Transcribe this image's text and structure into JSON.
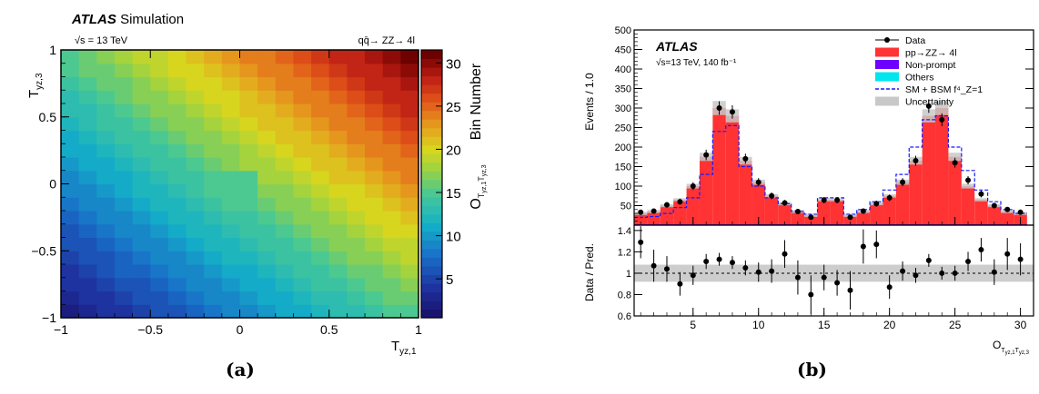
{
  "panels": {
    "a": {
      "caption": "(a)"
    },
    "b": {
      "caption": "(b)"
    }
  },
  "chart_data": [
    {
      "type": "heatmap",
      "panel": "(a)",
      "title": "ATLAS Simulation",
      "title_bold": "ATLAS",
      "title_rest": "Simulation",
      "energy_label": "√s = 13 TeV",
      "process_label": "qq̄→ ZZ→ 4l",
      "xlabel": "T_yz,1",
      "ylabel": "T_yz,3",
      "xlim": [
        -1,
        1
      ],
      "ylim": [
        -1,
        1
      ],
      "x_ticks": [
        "−1",
        "−0.5",
        "0",
        "0.5",
        "1"
      ],
      "y_ticks": [
        "−1",
        "−0.5",
        "0",
        "0.5",
        "1"
      ],
      "colorbar_label": "Bin Number",
      "colorbar_sublabel": "O_T_yz,1 T_yz,3",
      "colorbar_range": [
        1,
        31
      ],
      "colorbar_ticks": [
        "5",
        "10",
        "15",
        "20",
        "25",
        "30"
      ],
      "grid": "20x20 bins, bin number increasing with T_yz,1 + T_yz,3 (ordered by product sign); central 2x2 bins = 15"
    },
    {
      "type": "bar",
      "panel": "(b)",
      "experiment_label": "ATLAS",
      "energy_label": "√s=13 TeV, 140 fb⁻¹",
      "xlabel": "O_T_yz,1 T_yz,3",
      "ylabel": "Events / 1.0",
      "ratio_ylabel": "Data / Pred.",
      "xlim": [
        0.5,
        31
      ],
      "ylim": [
        0,
        500
      ],
      "ratio_ylim": [
        0.6,
        1.45
      ],
      "x_ticks": [
        "5",
        "10",
        "15",
        "20",
        "25",
        "30"
      ],
      "y_ticks": [
        "50",
        "100",
        "150",
        "200",
        "250",
        "300",
        "350",
        "400",
        "450",
        "500"
      ],
      "ratio_ticks": [
        "0.6",
        "0.8",
        "1",
        "1.2",
        "1.4"
      ],
      "legend": [
        "Data",
        "pp→ZZ→ 4l",
        "Non-prompt",
        "Others",
        "SM + BSM f⁴_Z=1",
        "Uncertainty"
      ],
      "legend_position": "top-right",
      "colors": {
        "signal": "#ff3333",
        "nonprompt": "#6d00ff",
        "others": "#00e5ee",
        "bsm": "#1a1aff",
        "uncertainty": "#c8c8c8",
        "data": "#000000"
      },
      "bins": [
        1,
        2,
        3,
        4,
        5,
        6,
        7,
        8,
        9,
        10,
        11,
        12,
        13,
        14,
        15,
        16,
        17,
        18,
        19,
        20,
        21,
        22,
        23,
        24,
        25,
        26,
        27,
        28,
        29,
        30
      ],
      "series": [
        {
          "name": "pp→ZZ→ 4l",
          "values": [
            30,
            35,
            50,
            65,
            100,
            175,
            300,
            280,
            165,
            110,
            75,
            55,
            35,
            25,
            65,
            65,
            25,
            35,
            55,
            75,
            110,
            165,
            280,
            300,
            175,
            100,
            65,
            50,
            35,
            30
          ]
        },
        {
          "name": "SM + BSM f⁴_Z=1",
          "values": [
            20,
            22,
            30,
            45,
            70,
            130,
            240,
            255,
            150,
            100,
            70,
            55,
            35,
            28,
            70,
            70,
            28,
            40,
            60,
            90,
            130,
            200,
            270,
            280,
            200,
            140,
            90,
            60,
            40,
            30
          ]
        },
        {
          "name": "Data",
          "values": [
            33,
            36,
            52,
            60,
            100,
            180,
            300,
            290,
            170,
            110,
            75,
            57,
            35,
            20,
            64,
            64,
            20,
            36,
            55,
            70,
            110,
            165,
            305,
            270,
            160,
            115,
            80,
            50,
            40,
            33
          ]
        }
      ],
      "ratio": [
        1.29,
        1.07,
        1.04,
        0.9,
        0.98,
        1.11,
        1.13,
        1.1,
        1.05,
        1.01,
        1.02,
        1.18,
        0.96,
        0.8,
        0.96,
        0.91,
        0.84,
        1.25,
        1.27,
        0.87,
        1.02,
        0.98,
        1.12,
        1.0,
        1.0,
        1.11,
        1.22,
        1.01,
        1.18,
        1.13
      ],
      "ratio_errors": [
        0.15,
        0.15,
        0.12,
        0.11,
        0.09,
        0.07,
        0.06,
        0.06,
        0.07,
        0.09,
        0.11,
        0.13,
        0.16,
        0.18,
        0.12,
        0.12,
        0.18,
        0.16,
        0.13,
        0.11,
        0.09,
        0.07,
        0.06,
        0.06,
        0.07,
        0.09,
        0.11,
        0.12,
        0.15,
        0.15
      ]
    }
  ]
}
